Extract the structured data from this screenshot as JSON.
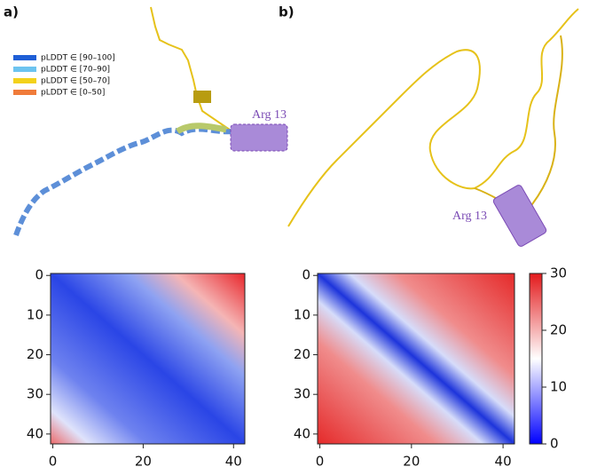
{
  "panels": [
    {
      "label": "a)",
      "legend": [
        "pLDDT ∈ [90–100]",
        "pLDDT ∈ [70–90]",
        "pLDDT ∈ [50–70]",
        "pLDDT ∈ [0–50]"
      ],
      "legend_colors": [
        "#1f5fd6",
        "#6cc3f0",
        "#f3d21b",
        "#f07b3a"
      ],
      "annotation": "Arg 13"
    },
    {
      "label": "b)",
      "annotation": "Arg 13"
    }
  ],
  "heatmaps": [
    {
      "xlim": [
        -0.5,
        42.5
      ],
      "ylim": [
        42.5,
        -0.5
      ],
      "xticks": [
        0,
        20,
        40
      ],
      "yticks": [
        0,
        10,
        20,
        30,
        40
      ]
    },
    {
      "xlim": [
        -0.5,
        42.5
      ],
      "ylim": [
        42.5,
        -0.5
      ],
      "xticks": [
        0,
        20,
        40
      ],
      "yticks": [
        0,
        10,
        20,
        30,
        40
      ]
    }
  ],
  "colorbar": {
    "lim": [
      0,
      30
    ],
    "ticks": [
      0,
      10,
      20,
      30
    ]
  }
}
